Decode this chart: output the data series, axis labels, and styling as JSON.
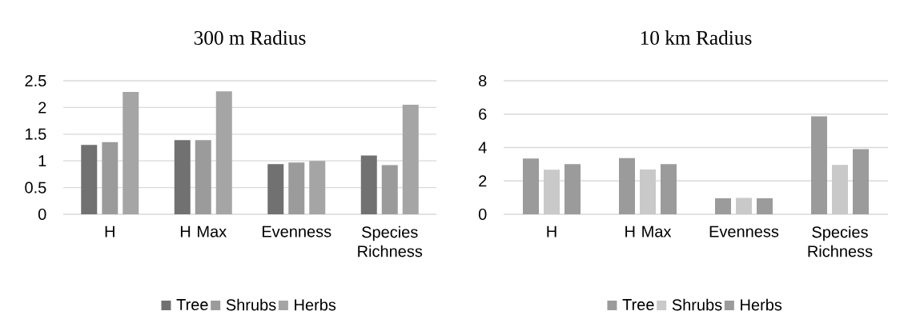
{
  "chart_data": [
    {
      "type": "bar",
      "title": "300 m Radius",
      "categories": [
        "H",
        "H Max",
        "Evenness",
        "Species Richness"
      ],
      "series": [
        {
          "name": "Tree",
          "color": "#717171",
          "values": [
            1.3,
            1.39,
            0.94,
            1.1
          ]
        },
        {
          "name": "Shrubs",
          "color": "#9b9b9b",
          "values": [
            1.35,
            1.39,
            0.97,
            0.92
          ]
        },
        {
          "name": "Herbs",
          "color": "#a5a5a5",
          "values": [
            2.29,
            2.3,
            1.0,
            2.05
          ]
        }
      ],
      "ylim": [
        0,
        2.5
      ],
      "yticks": [
        0,
        0.5,
        1,
        1.5,
        2,
        2.5
      ],
      "grid": "y",
      "legend": "bottom"
    },
    {
      "type": "bar",
      "title": "10 km Radius",
      "categories": [
        "H",
        "H Max",
        "Evenness",
        "Species Richness"
      ],
      "series": [
        {
          "name": "Tree",
          "color": "#9b9b9b",
          "values": [
            3.34,
            3.37,
            0.96,
            5.87
          ]
        },
        {
          "name": "Shrubs",
          "color": "#c9c9c9",
          "values": [
            2.67,
            2.68,
            0.98,
            2.96
          ]
        },
        {
          "name": "Herbs",
          "color": "#9b9b9b",
          "values": [
            3.01,
            3.01,
            0.96,
            3.9
          ]
        }
      ],
      "ylim": [
        0,
        8
      ],
      "yticks": [
        0,
        2,
        4,
        6,
        8
      ],
      "grid": "y",
      "legend": "bottom"
    }
  ]
}
